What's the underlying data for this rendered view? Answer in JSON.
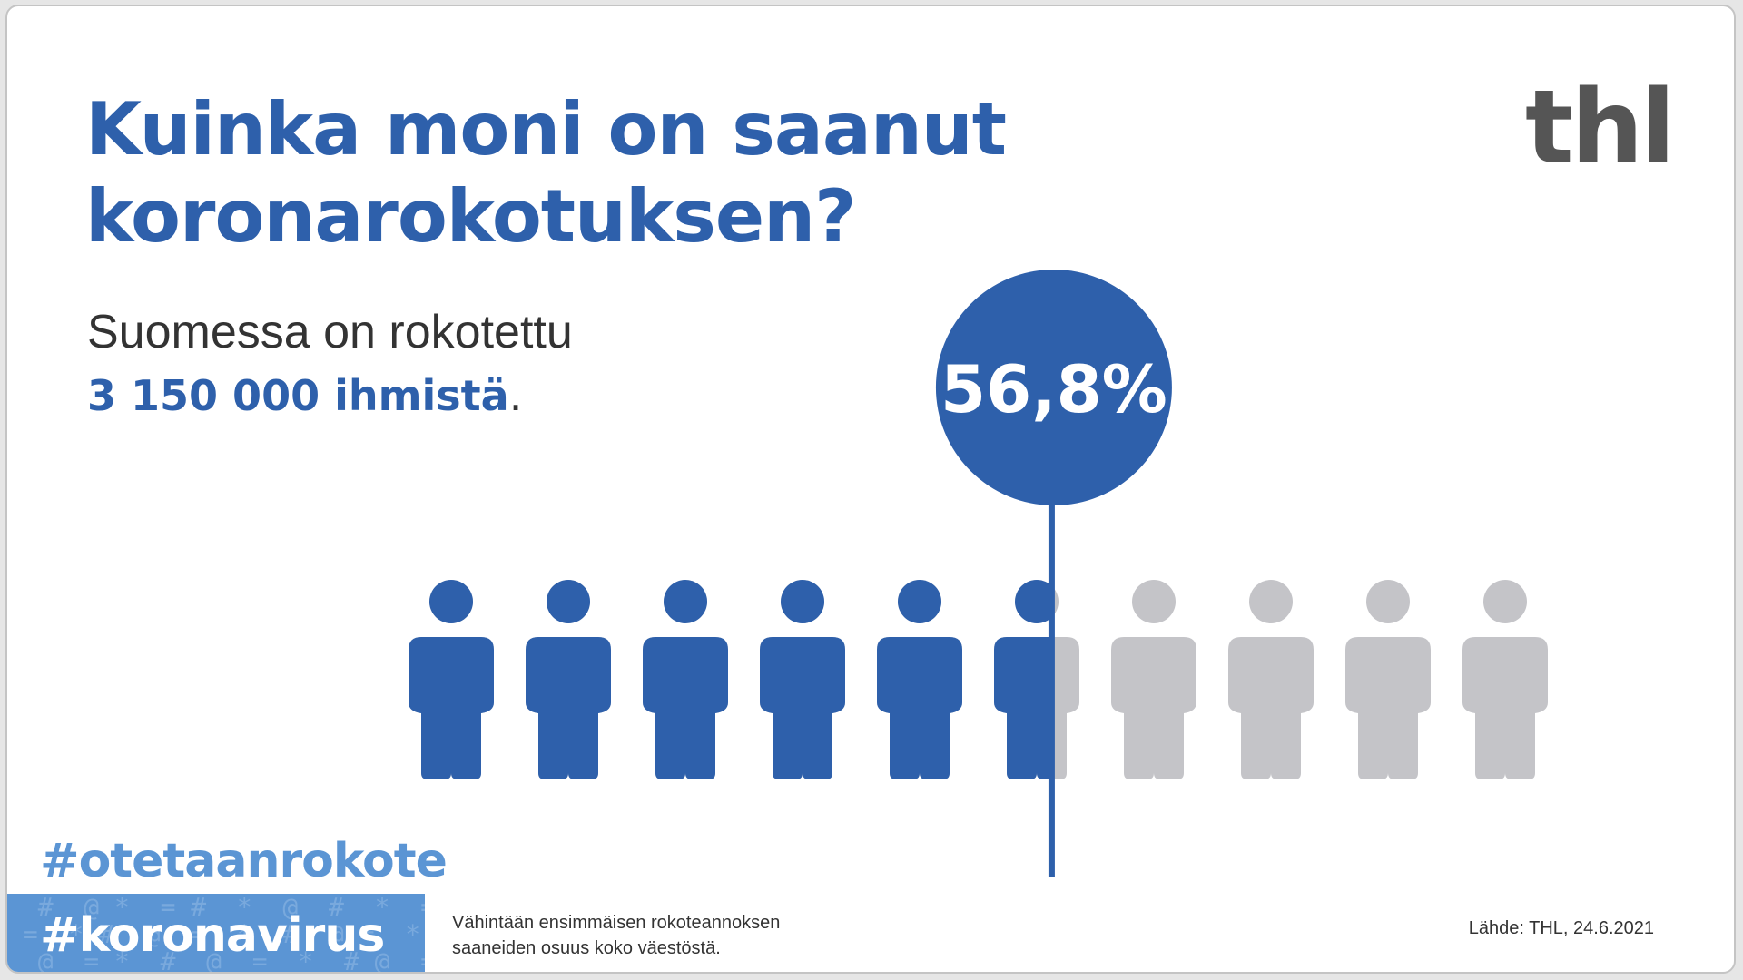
{
  "header": {
    "title_line1": "Kuinka moni on saanut",
    "title_line2": "koronarokotuksen?",
    "logo": "thl"
  },
  "lead": {
    "line1": "Suomessa on rokotettu",
    "count": "3 150 000 ihmistä",
    "count_suffix": "."
  },
  "chart_data": {
    "type": "pictogram",
    "title": "Kuinka moni on saanut koronarokotuksen?",
    "value_label": "56,8%",
    "percent": 56.8,
    "icons_total": 10,
    "filled_color": "#2e60ab",
    "empty_color": "#c4c4c8",
    "marker_color": "#2e60ab"
  },
  "hashtags": {
    "primary": "#otetaanrokote",
    "secondary": "#koronavirus",
    "primary_color": "#5b95d4"
  },
  "footer": {
    "note_line1": "Vähintään ensimmäisen rokoteannoksen",
    "note_line2": "saaneiden osuus koko väestöstä.",
    "source": "Lähde: THL, 24.6.2021"
  }
}
